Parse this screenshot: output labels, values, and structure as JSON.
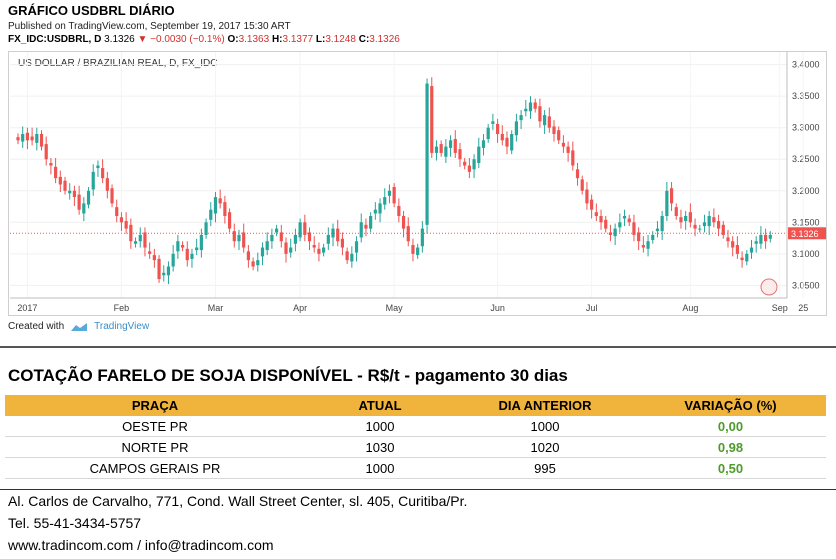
{
  "header": {
    "title": "GRÁFICO USDBRL DIÁRIO",
    "published": "Published on TradingView.com, September 19, 2017 15:30 ART",
    "symbol": "FX_IDC:USDBRL, D",
    "last": "3.1326",
    "change": "▼ −0.0030 (−0.1%)",
    "o_label": "O:",
    "o_value": "3.1363",
    "h_label": "H:",
    "h_value": "3.1377",
    "l_label": "L:",
    "l_value": "3.1248",
    "c_label": "C:",
    "c_value": "3.1326"
  },
  "chart_data": {
    "type": "candlestick",
    "symbol_label": "US DOLLAR / BRAZILIAN REAL, D, FX_IDC",
    "x_ticks": [
      "2017",
      "Feb",
      "Mar",
      "Apr",
      "May",
      "Jun",
      "Jul",
      "Aug",
      "Sep",
      "25"
    ],
    "y_ticks": [
      "3.4000",
      "3.3500",
      "3.3000",
      "3.2500",
      "3.2000",
      "3.1500",
      "3.1000",
      "3.0500"
    ],
    "ylim": [
      3.03,
      3.42
    ],
    "last_price_label": "3.1326",
    "last_price": 3.1326,
    "up_color": "#26a69a",
    "down_color": "#ef5350",
    "closes": [
      3.28,
      3.29,
      3.28,
      3.28,
      3.29,
      3.27,
      3.25,
      3.24,
      3.22,
      3.21,
      3.2,
      3.2,
      3.19,
      3.17,
      3.18,
      3.2,
      3.23,
      3.24,
      3.22,
      3.2,
      3.18,
      3.16,
      3.15,
      3.14,
      3.12,
      3.12,
      3.13,
      3.11,
      3.1,
      3.09,
      3.06,
      3.07,
      3.08,
      3.1,
      3.12,
      3.11,
      3.09,
      3.1,
      3.11,
      3.13,
      3.15,
      3.17,
      3.19,
      3.18,
      3.16,
      3.14,
      3.12,
      3.13,
      3.11,
      3.09,
      3.08,
      3.09,
      3.11,
      3.12,
      3.13,
      3.14,
      3.12,
      3.1,
      3.11,
      3.13,
      3.15,
      3.13,
      3.12,
      3.11,
      3.1,
      3.11,
      3.13,
      3.14,
      3.12,
      3.11,
      3.09,
      3.1,
      3.12,
      3.15,
      3.14,
      3.16,
      3.17,
      3.18,
      3.19,
      3.2,
      3.18,
      3.16,
      3.14,
      3.12,
      3.1,
      3.11,
      3.14,
      3.37,
      3.26,
      3.27,
      3.26,
      3.27,
      3.28,
      3.26,
      3.25,
      3.24,
      3.23,
      3.25,
      3.27,
      3.28,
      3.3,
      3.31,
      3.29,
      3.28,
      3.27,
      3.29,
      3.31,
      3.32,
      3.33,
      3.34,
      3.33,
      3.31,
      3.32,
      3.3,
      3.29,
      3.28,
      3.27,
      3.26,
      3.24,
      3.22,
      3.2,
      3.18,
      3.17,
      3.16,
      3.15,
      3.14,
      3.13,
      3.14,
      3.15,
      3.16,
      3.15,
      3.13,
      3.12,
      3.11,
      3.12,
      3.13,
      3.14,
      3.16,
      3.2,
      3.18,
      3.16,
      3.15,
      3.16,
      3.15,
      3.14,
      3.14,
      3.15,
      3.16,
      3.15,
      3.14,
      3.13,
      3.12,
      3.11,
      3.1,
      3.09,
      3.1,
      3.11,
      3.12,
      3.13,
      3.12,
      3.13
    ]
  },
  "created": {
    "prefix": "Created with",
    "brand": "TradingView"
  },
  "table": {
    "title": "COTAÇÃO FARELO DE SOJA DISPONÍVEL - R$/t - pagamento 30 dias",
    "headers": [
      "PRAÇA",
      "ATUAL",
      "DIA ANTERIOR",
      "VARIAÇÃO (%)"
    ],
    "rows": [
      {
        "praca": "OESTE PR",
        "atual": "1000",
        "anterior": "1000",
        "variacao": "0,00"
      },
      {
        "praca": "NORTE PR",
        "atual": "1030",
        "anterior": "1020",
        "variacao": "0,98"
      },
      {
        "praca": "CAMPOS GERAIS PR",
        "atual": "1000",
        "anterior": "995",
        "variacao": "0,50"
      }
    ]
  },
  "footer": {
    "address": "Al. Carlos de Carvalho, 771, Cond. Wall Street Center, sl. 405, Curitiba/Pr.",
    "phone": "Tel. 55-41-3434-5757",
    "web": "www.tradincom.com / info@tradincom.com"
  }
}
